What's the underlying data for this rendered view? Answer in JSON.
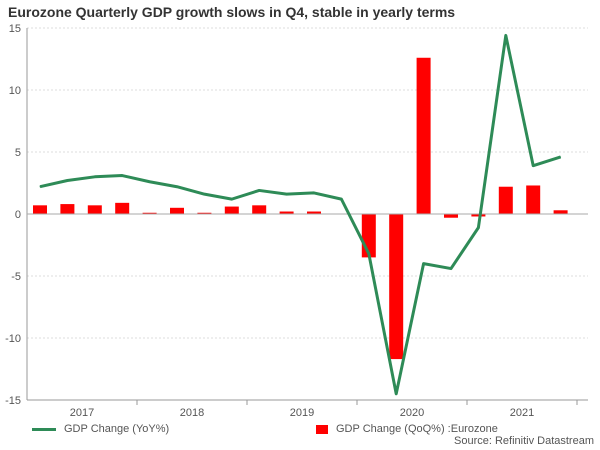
{
  "chart_data": {
    "type": "bar+line",
    "title": "Eurozone Quarterly GDP growth slows in Q4, stable in yearly terms",
    "categories": [
      "2017Q1",
      "2017Q2",
      "2017Q3",
      "2017Q4",
      "2018Q1",
      "2018Q2",
      "2018Q3",
      "2018Q4",
      "2019Q1",
      "2019Q2",
      "2019Q3",
      "2019Q4",
      "2020Q1",
      "2020Q2",
      "2020Q3",
      "2020Q4",
      "2021Q1",
      "2021Q2",
      "2021Q3",
      "2021Q4"
    ],
    "x_tick_labels": [
      "2017",
      "2018",
      "2019",
      "2020",
      "2021"
    ],
    "y_ticks": [
      15,
      10,
      5,
      0,
      -5,
      -10,
      -15
    ],
    "ylim": [
      -15,
      15
    ],
    "grid": true,
    "legend_position": "bottom",
    "series": [
      {
        "name": "GDP Change (YoY%)",
        "type": "line",
        "color": "#2e8b57",
        "values": [
          2.2,
          2.7,
          3.0,
          3.1,
          2.6,
          2.2,
          1.6,
          1.2,
          1.9,
          1.6,
          1.7,
          1.2,
          -3.2,
          -14.5,
          -4.0,
          -4.4,
          -1.1,
          14.4,
          3.9,
          4.6
        ]
      },
      {
        "name": "GDP Change (QoQ%) :Eurozone",
        "type": "bar",
        "color": "#ff0000",
        "values": [
          0.7,
          0.8,
          0.7,
          0.9,
          0.1,
          0.5,
          0.1,
          0.6,
          0.7,
          0.2,
          0.2,
          0.0,
          -3.5,
          -11.7,
          12.6,
          -0.3,
          -0.2,
          2.2,
          2.3,
          0.3
        ]
      }
    ],
    "source": "Source: Refinitiv Datastream"
  }
}
